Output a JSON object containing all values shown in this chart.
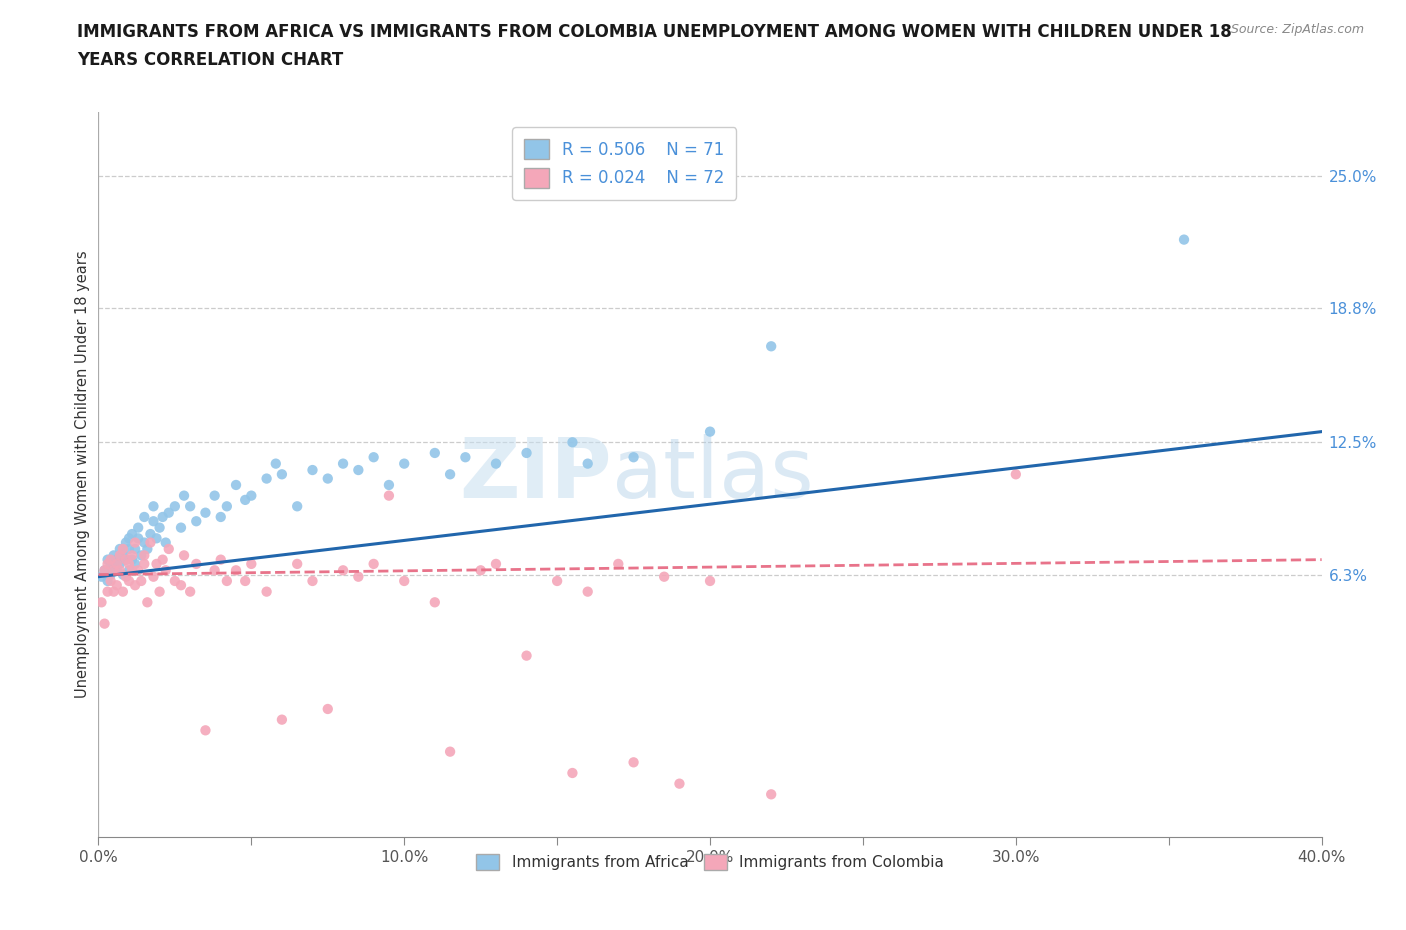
{
  "title_line1": "IMMIGRANTS FROM AFRICA VS IMMIGRANTS FROM COLOMBIA UNEMPLOYMENT AMONG WOMEN WITH CHILDREN UNDER 18",
  "title_line2": "YEARS CORRELATION CHART",
  "source_text": "Source: ZipAtlas.com",
  "ylabel": "Unemployment Among Women with Children Under 18 years",
  "xlim": [
    0.0,
    0.4
  ],
  "ylim": [
    -0.06,
    0.28
  ],
  "xticks": [
    0.0,
    0.05,
    0.1,
    0.15,
    0.2,
    0.25,
    0.3,
    0.35,
    0.4
  ],
  "xtick_labels": [
    "0.0%",
    "",
    "10.0%",
    "",
    "20.0%",
    "",
    "30.0%",
    "",
    "40.0%"
  ],
  "ytick_labels_right": [
    "6.3%",
    "12.5%",
    "18.8%",
    "25.0%"
  ],
  "ytick_values_right": [
    0.063,
    0.125,
    0.188,
    0.25
  ],
  "hline_values": [
    0.063,
    0.125,
    0.188,
    0.25
  ],
  "legend_r1": "R = 0.506",
  "legend_n1": "N = 71",
  "legend_r2": "R = 0.024",
  "legend_n2": "N = 72",
  "color_africa": "#92c5e8",
  "color_colombia": "#f4a7b9",
  "color_africa_line": "#2166ac",
  "color_colombia_line": "#e8738a",
  "watermark_zip": "ZIP",
  "watermark_atlas": "atlas",
  "legend_label1": "Immigrants from Africa",
  "legend_label2": "Immigrants from Colombia",
  "africa_x": [
    0.001,
    0.002,
    0.003,
    0.003,
    0.004,
    0.004,
    0.005,
    0.005,
    0.006,
    0.006,
    0.007,
    0.007,
    0.008,
    0.008,
    0.009,
    0.009,
    0.01,
    0.01,
    0.01,
    0.011,
    0.011,
    0.012,
    0.012,
    0.013,
    0.013,
    0.014,
    0.015,
    0.015,
    0.016,
    0.017,
    0.018,
    0.018,
    0.019,
    0.02,
    0.021,
    0.022,
    0.023,
    0.025,
    0.027,
    0.028,
    0.03,
    0.032,
    0.035,
    0.038,
    0.04,
    0.042,
    0.045,
    0.048,
    0.05,
    0.055,
    0.058,
    0.06,
    0.065,
    0.07,
    0.075,
    0.08,
    0.085,
    0.09,
    0.095,
    0.1,
    0.11,
    0.115,
    0.12,
    0.13,
    0.14,
    0.155,
    0.16,
    0.175,
    0.2,
    0.22,
    0.355
  ],
  "africa_y": [
    0.062,
    0.065,
    0.06,
    0.07,
    0.063,
    0.068,
    0.067,
    0.072,
    0.065,
    0.07,
    0.068,
    0.075,
    0.072,
    0.063,
    0.07,
    0.078,
    0.065,
    0.075,
    0.08,
    0.07,
    0.082,
    0.075,
    0.068,
    0.08,
    0.085,
    0.072,
    0.078,
    0.09,
    0.075,
    0.082,
    0.088,
    0.095,
    0.08,
    0.085,
    0.09,
    0.078,
    0.092,
    0.095,
    0.085,
    0.1,
    0.095,
    0.088,
    0.092,
    0.1,
    0.09,
    0.095,
    0.105,
    0.098,
    0.1,
    0.108,
    0.115,
    0.11,
    0.095,
    0.112,
    0.108,
    0.115,
    0.112,
    0.118,
    0.105,
    0.115,
    0.12,
    0.11,
    0.118,
    0.115,
    0.12,
    0.125,
    0.115,
    0.118,
    0.13,
    0.17,
    0.22
  ],
  "colombia_x": [
    0.001,
    0.002,
    0.002,
    0.003,
    0.003,
    0.004,
    0.004,
    0.005,
    0.005,
    0.006,
    0.006,
    0.007,
    0.007,
    0.008,
    0.008,
    0.009,
    0.009,
    0.01,
    0.01,
    0.011,
    0.011,
    0.012,
    0.012,
    0.013,
    0.014,
    0.015,
    0.015,
    0.016,
    0.017,
    0.018,
    0.019,
    0.02,
    0.021,
    0.022,
    0.023,
    0.025,
    0.027,
    0.028,
    0.03,
    0.032,
    0.035,
    0.038,
    0.04,
    0.042,
    0.045,
    0.048,
    0.05,
    0.055,
    0.06,
    0.065,
    0.07,
    0.075,
    0.08,
    0.085,
    0.09,
    0.095,
    0.1,
    0.11,
    0.115,
    0.125,
    0.13,
    0.14,
    0.15,
    0.155,
    0.16,
    0.17,
    0.175,
    0.185,
    0.19,
    0.2,
    0.22,
    0.3
  ],
  "colombia_y": [
    0.05,
    0.04,
    0.065,
    0.055,
    0.068,
    0.06,
    0.07,
    0.055,
    0.065,
    0.068,
    0.058,
    0.072,
    0.065,
    0.055,
    0.075,
    0.062,
    0.07,
    0.06,
    0.068,
    0.065,
    0.072,
    0.058,
    0.078,
    0.065,
    0.06,
    0.068,
    0.072,
    0.05,
    0.078,
    0.062,
    0.068,
    0.055,
    0.07,
    0.065,
    0.075,
    0.06,
    0.058,
    0.072,
    0.055,
    0.068,
    -0.01,
    0.065,
    0.07,
    0.06,
    0.065,
    0.06,
    0.068,
    0.055,
    -0.005,
    0.068,
    0.06,
    0.0,
    0.065,
    0.062,
    0.068,
    0.1,
    0.06,
    0.05,
    -0.02,
    0.065,
    0.068,
    0.025,
    0.06,
    -0.03,
    0.055,
    0.068,
    -0.025,
    0.062,
    -0.035,
    0.06,
    -0.04,
    0.11
  ]
}
